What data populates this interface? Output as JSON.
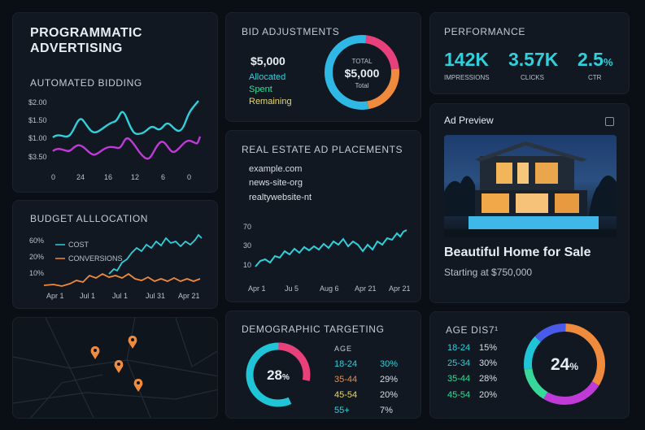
{
  "header": {
    "title_line1": "PROGRAMMATIC",
    "title_line2": "ADVERTISING"
  },
  "automated_bidding": {
    "title": "AUTOMATED BIDDING",
    "y_ticks": [
      "$2.00",
      "$1.50",
      "$1.00",
      "$3.50"
    ],
    "x_ticks": [
      "0",
      "24",
      "16",
      "12",
      "6",
      "0"
    ]
  },
  "budget_allocation": {
    "title": "BUDGET ALLLOCATION",
    "y_ticks": [
      "60%",
      "20%",
      "10%"
    ],
    "legend": [
      "COST",
      "CONVERSIONS"
    ],
    "x_ticks": [
      "Apr 1",
      "Jul 1",
      "Jul 1",
      "Jul 31",
      "Apr 21"
    ]
  },
  "bid_adjustments": {
    "title": "BID ADJUSTMENTS",
    "amount": "$5,000",
    "items": [
      "Allocated",
      "Spent",
      "Remaining"
    ],
    "donut_top": "TOTAL",
    "donut_value": "$5,000",
    "donut_bottom": "Total"
  },
  "performance": {
    "title": "PERFORMANCE",
    "metrics": [
      {
        "value": "142K",
        "unit": "",
        "label": "IMPRESSIONS"
      },
      {
        "value": "3.57K",
        "unit": "",
        "label": "CLICKS"
      },
      {
        "value": "2.5",
        "unit": "%",
        "label": "CTR"
      }
    ]
  },
  "placements": {
    "title": "REAL ESTATE AD PLACEMENTS",
    "sites": [
      "example.com",
      "news-site-org",
      "realtywebsite-nt"
    ],
    "y_ticks": [
      "70",
      "30",
      "10"
    ],
    "x_ticks": [
      "Apr 1",
      "Ju 5",
      "Aug 6",
      "Apr 21",
      "Apr 21"
    ]
  },
  "ad_preview": {
    "title": "Ad Preview",
    "headline": "Beautiful Home for Sale",
    "subtext": "Starting at $750,000"
  },
  "demographic": {
    "title": "DEMOGRAPHIC TARGETING",
    "donut_value": "28",
    "donut_unit": "%",
    "col_header": "AGE",
    "rows": [
      {
        "age": "18-24",
        "pct": "30%"
      },
      {
        "age": "35-44",
        "pct": "29%"
      },
      {
        "age": "45-54",
        "pct": "20%"
      },
      {
        "age": "55+",
        "pct": "7%"
      }
    ]
  },
  "age_dist": {
    "title": "AGE DIS7¹",
    "rows": [
      {
        "age": "18-24",
        "pct": "15%"
      },
      {
        "age": "25-34",
        "pct": "30%"
      },
      {
        "age": "35-44",
        "pct": "28%"
      },
      {
        "age": "45-54",
        "pct": "20%"
      }
    ],
    "donut_value": "24",
    "donut_unit": "%"
  },
  "colors": {
    "background": "#0a0f16",
    "card": "#111821",
    "cyan": "#2fd0dc",
    "magenta": "#c03ad8",
    "orange": "#f08a3c",
    "pink": "#e8407a",
    "green": "#37d99a",
    "yellow": "#e8d86a"
  }
}
